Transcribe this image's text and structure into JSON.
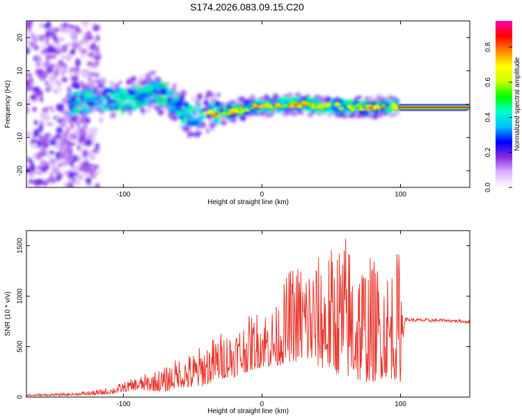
{
  "title": "S174.2026.083.09.15.C20",
  "colors": {
    "snr_line": "#e8352b",
    "axis": "#000000",
    "background": "#ffffff"
  },
  "chart_data": [
    {
      "type": "heatmap",
      "name": "spectrogram",
      "xlabel": "Height of straight line (km)",
      "ylabel": "Frequency (Hz)",
      "xlim": [
        -170,
        150
      ],
      "ylim": [
        -25,
        25
      ],
      "xticks": [
        -100,
        0,
        100
      ],
      "yticks": [
        -20,
        -10,
        0,
        10,
        20
      ],
      "grid": false,
      "colorbar": {
        "label": "Normalized spectral amplitude",
        "range": [
          0.0,
          0.95
        ],
        "ticks": [
          0.0,
          0.2,
          0.4,
          0.6,
          0.8
        ],
        "colormap": [
          "#ffffff",
          "#d9b3ff",
          "#8a2be2",
          "#0000ff",
          "#00bfff",
          "#00ffcc",
          "#00ff00",
          "#ccff00",
          "#ffff00",
          "#ff8800",
          "#ff0000",
          "#ff00aa"
        ]
      },
      "ridge": {
        "x": [
          -140,
          -130,
          -120,
          -110,
          -100,
          -90,
          -80,
          -72,
          -65,
          -60,
          -55,
          -50,
          -45,
          -40,
          -35,
          -30,
          -20,
          -10,
          0,
          10,
          20,
          30,
          40,
          50,
          60,
          70,
          80,
          90,
          98
        ],
        "y": [
          0,
          0.5,
          1,
          1.5,
          1,
          2,
          4,
          3,
          1,
          -1,
          -3,
          -4,
          -3,
          -2,
          -3,
          -3,
          -2,
          -1,
          -0.5,
          -0.5,
          0,
          0,
          -0.5,
          -0.5,
          -1,
          -1,
          -1,
          -0.5,
          -1
        ]
      },
      "steady_band": {
        "x": [
          98,
          150
        ],
        "frequency": -1
      },
      "noise_region_x": [
        -170,
        -118
      ]
    },
    {
      "type": "line",
      "name": "snr",
      "xlabel": "Height of straight line (km)",
      "ylabel": "SNR (10 * v/v)",
      "xlim": [
        -170,
        150
      ],
      "ylim": [
        0,
        1650
      ],
      "xticks": [
        -100,
        0,
        100
      ],
      "yticks": [
        0,
        500,
        1000,
        1500
      ],
      "grid": false,
      "envelope": {
        "x": [
          -170,
          -140,
          -120,
          -110,
          -100,
          -90,
          -80,
          -70,
          -60,
          -50,
          -40,
          -30,
          -20,
          -10,
          0,
          10,
          20,
          30,
          40,
          50,
          60,
          70,
          80,
          90,
          100,
          103,
          110,
          120,
          130,
          140,
          150
        ],
        "low": [
          10,
          15,
          20,
          30,
          50,
          70,
          60,
          50,
          100,
          80,
          120,
          180,
          200,
          250,
          300,
          300,
          350,
          350,
          300,
          250,
          200,
          150,
          150,
          200,
          150,
          750,
          745,
          740,
          745,
          740,
          730
        ],
        "high": [
          30,
          40,
          70,
          90,
          150,
          200,
          250,
          300,
          400,
          450,
          550,
          650,
          700,
          800,
          900,
          900,
          1300,
          1400,
          1400,
          1500,
          1650,
          1450,
          1400,
          1300,
          1500,
          790,
          780,
          780,
          775,
          770,
          760
        ]
      }
    }
  ]
}
